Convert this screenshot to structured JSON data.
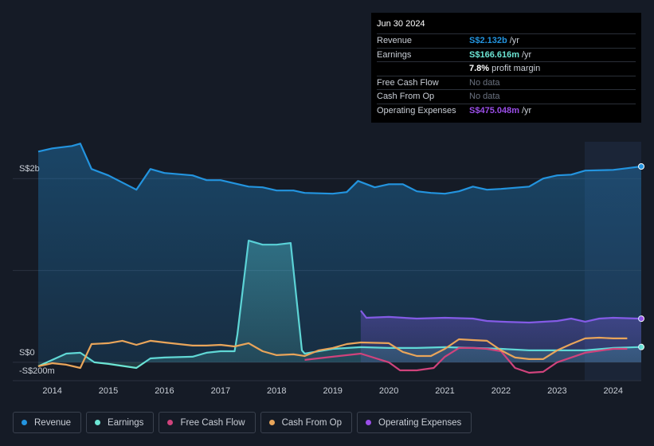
{
  "chart_data": {
    "type": "line",
    "xlim": [
      2013.75,
      2024.5
    ],
    "xticks": [
      2014,
      2015,
      2016,
      2017,
      2018,
      2019,
      2020,
      2021,
      2022,
      2023,
      2024
    ],
    "ylim": [
      -200,
      2600
    ],
    "yticks": [
      {
        "value": -200,
        "label": "-S$200m"
      },
      {
        "value": 0,
        "label": "S$0"
      },
      {
        "value": 1000,
        "label": null
      },
      {
        "value": 2000,
        "label": "S$2b"
      }
    ],
    "grid": true,
    "series": [
      {
        "name": "Revenue",
        "color": "#2394df",
        "fill": true,
        "x": [
          2013.75,
          2014.0,
          2014.35,
          2014.5,
          2014.7,
          2015.0,
          2015.5,
          2015.75,
          2016.0,
          2016.5,
          2016.75,
          2017.0,
          2017.5,
          2017.75,
          2018.0,
          2018.3,
          2018.5,
          2019.0,
          2019.25,
          2019.45,
          2019.75,
          2020.0,
          2020.25,
          2020.5,
          2020.75,
          2021.0,
          2021.25,
          2021.5,
          2021.75,
          2022.0,
          2022.5,
          2022.75,
          2023.0,
          2023.25,
          2023.5,
          2024.0,
          2024.25,
          2024.5
        ],
        "values": [
          2294,
          2329,
          2355,
          2381,
          2104,
          2035,
          1879,
          2104,
          2061,
          2035,
          1983,
          1983,
          1913,
          1905,
          1870,
          1870,
          1844,
          1835,
          1853,
          1974,
          1905,
          1939,
          1939,
          1861,
          1844,
          1835,
          1861,
          1913,
          1879,
          1887,
          1913,
          2000,
          2035,
          2043,
          2087,
          2095,
          2113,
          2132
        ]
      },
      {
        "name": "Earnings",
        "color": "#6ce5d4",
        "fill": true,
        "x": [
          2013.75,
          2014.0,
          2014.25,
          2014.5,
          2014.75,
          2015.0,
          2015.5,
          2015.75,
          2016.0,
          2016.5,
          2016.75,
          2017.0,
          2017.25,
          2017.3,
          2017.5,
          2017.75,
          2018.0,
          2018.25,
          2018.45,
          2018.5,
          2019.0,
          2019.5,
          2020.0,
          2020.5,
          2021.0,
          2021.5,
          2022.0,
          2022.5,
          2023.0,
          2023.5,
          2024.0,
          2024.5
        ],
        "values": [
          -43,
          26,
          95,
          104,
          0,
          -17,
          -61,
          43,
          52,
          61,
          104,
          121,
          121,
          303,
          1325,
          1281,
          1281,
          1299,
          130,
          95,
          147,
          165,
          156,
          156,
          165,
          156,
          147,
          130,
          130,
          130,
          156,
          167
        ]
      },
      {
        "name": "Free Cash Flow",
        "color": "#d0437c",
        "fill": false,
        "x": [
          2018.5,
          2019.0,
          2019.5,
          2020.0,
          2020.2,
          2020.5,
          2020.8,
          2021.0,
          2021.25,
          2021.5,
          2021.75,
          2022.0,
          2022.25,
          2022.5,
          2022.75,
          2023.0,
          2023.5,
          2024.0,
          2024.25
        ],
        "values": [
          26,
          61,
          95,
          0,
          -87,
          -87,
          -61,
          61,
          156,
          156,
          147,
          121,
          -61,
          -113,
          -104,
          0,
          104,
          147,
          147
        ]
      },
      {
        "name": "Cash From Op",
        "color": "#e9a55a",
        "fill": false,
        "x": [
          2013.75,
          2014.0,
          2014.25,
          2014.5,
          2014.7,
          2015.0,
          2015.25,
          2015.5,
          2015.75,
          2016.0,
          2016.5,
          2016.75,
          2017.0,
          2017.25,
          2017.5,
          2017.75,
          2018.0,
          2018.3,
          2018.5,
          2018.75,
          2019.0,
          2019.25,
          2019.5,
          2020.0,
          2020.25,
          2020.5,
          2020.75,
          2021.0,
          2021.25,
          2021.5,
          2021.75,
          2022.0,
          2022.25,
          2022.5,
          2022.75,
          2023.0,
          2023.25,
          2023.5,
          2023.75,
          2024.0,
          2024.25
        ],
        "values": [
          -43,
          -9,
          -26,
          -61,
          199,
          208,
          234,
          190,
          234,
          216,
          182,
          182,
          190,
          173,
          208,
          121,
          78,
          87,
          69,
          130,
          156,
          199,
          216,
          208,
          113,
          69,
          69,
          147,
          251,
          242,
          234,
          130,
          52,
          35,
          35,
          130,
          199,
          260,
          268,
          260,
          260
        ]
      },
      {
        "name": "Operating Expenses",
        "color": "#9a4ee8",
        "fill": true,
        "x": [
          2019.5,
          2019.6,
          2020.0,
          2020.5,
          2021.0,
          2021.5,
          2021.75,
          2022.0,
          2022.5,
          2023.0,
          2023.25,
          2023.5,
          2023.75,
          2024.0,
          2024.5
        ],
        "values": [
          563,
          485,
          494,
          476,
          485,
          476,
          450,
          442,
          433,
          450,
          476,
          442,
          476,
          485,
          475
        ]
      }
    ],
    "tooltip": {
      "date": "Jun 30 2024",
      "rows": [
        {
          "label": "Revenue",
          "value": "S$2.132b",
          "unit": "/yr"
        },
        {
          "label": "Earnings",
          "value": "S$166.616m",
          "unit": "/yr"
        },
        {
          "label": null,
          "value": "7.8%",
          "unit": "profit margin"
        },
        {
          "label": "Free Cash Flow",
          "value": "No data",
          "unit": null
        },
        {
          "label": "Cash From Op",
          "value": "No data",
          "unit": null
        },
        {
          "label": "Operating Expenses",
          "value": "S$475.048m",
          "unit": "/yr"
        }
      ]
    }
  }
}
